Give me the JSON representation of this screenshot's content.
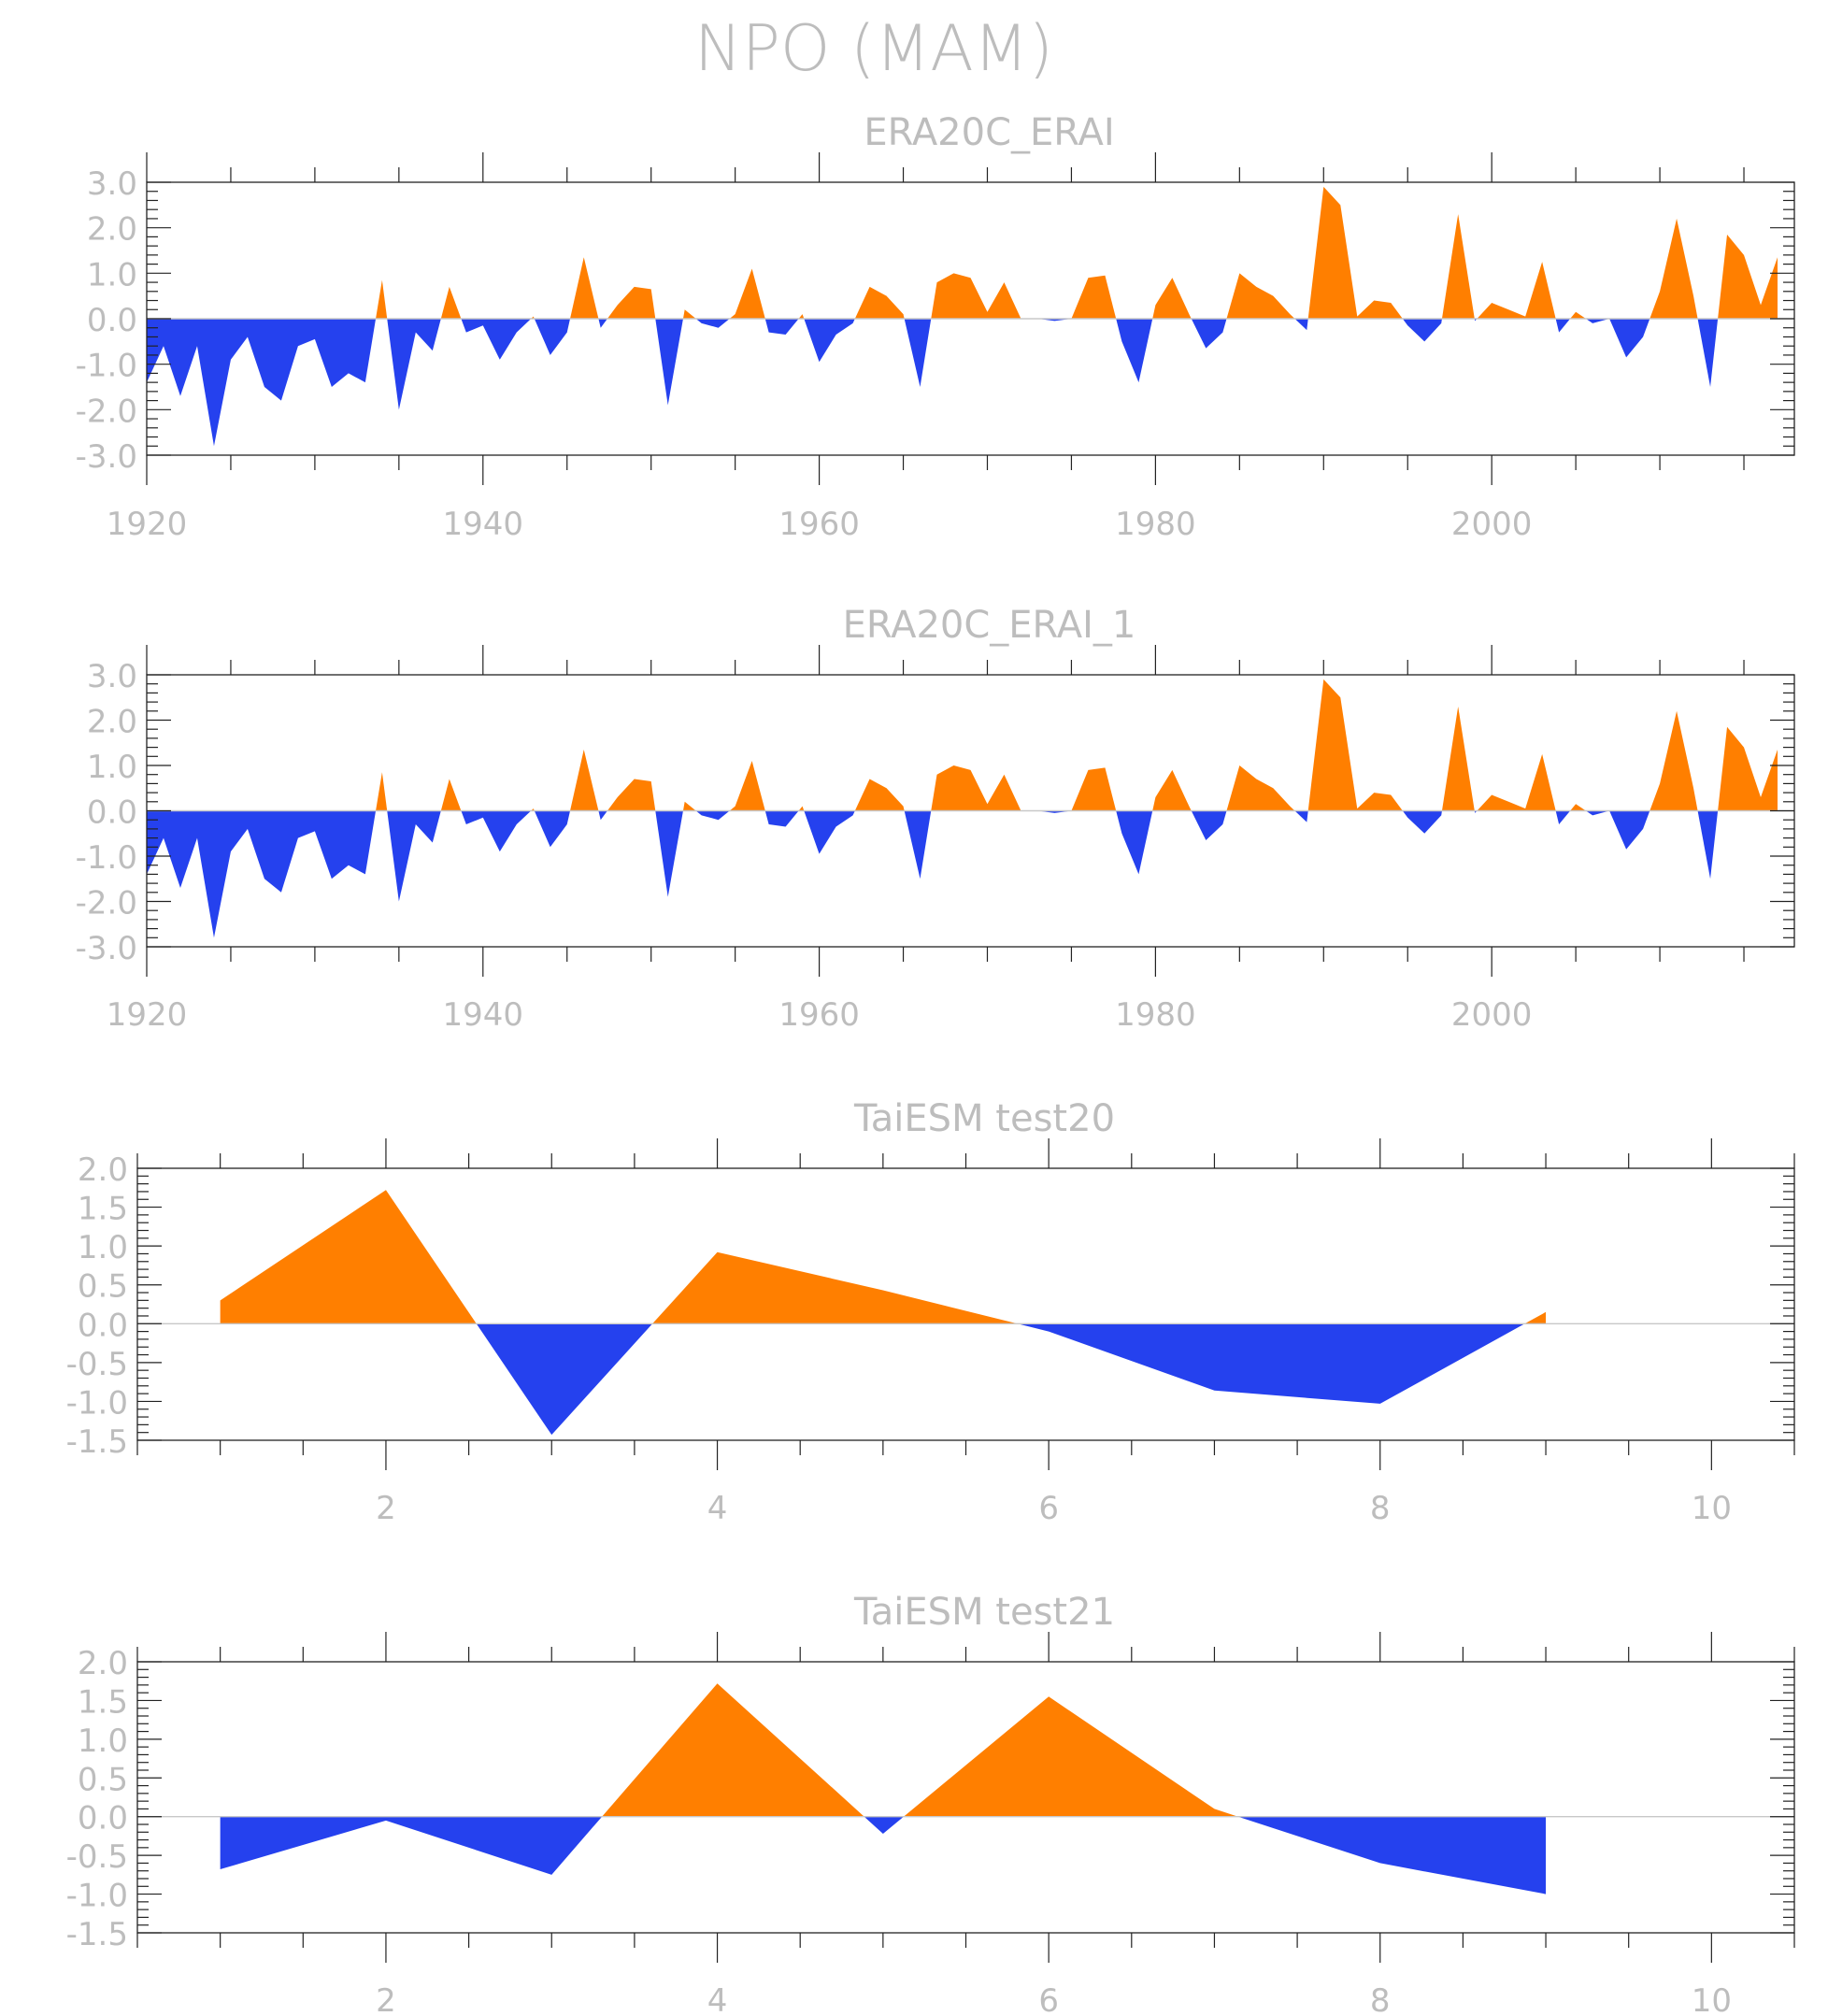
{
  "main_title": "NPO (MAM)",
  "colors": {
    "positive": "#ff7f00",
    "negative": "#2541ee",
    "text": "#bdbdbd",
    "frame": "#222222",
    "zero_line": "#c8c8c8"
  },
  "chart_data": [
    {
      "type": "area",
      "title": "ERA20C_ERAI",
      "xlabel": "",
      "ylabel": "",
      "xlim": [
        1920,
        2018
      ],
      "ylim": [
        -3,
        3
      ],
      "x_ticks": [
        1920,
        1940,
        1960,
        1980,
        2000
      ],
      "y_ticks": [
        "3.0",
        "2.0",
        "1.0",
        "0.0",
        "-1.0",
        "-2.0",
        "-3.0"
      ],
      "x_start": 1920,
      "values": [
        -1.4,
        -0.6,
        -1.7,
        -0.6,
        -2.8,
        -0.9,
        -0.4,
        -1.5,
        -1.8,
        -0.6,
        -0.45,
        -1.5,
        -1.2,
        -1.4,
        0.85,
        -2.0,
        -0.3,
        -0.7,
        0.7,
        -0.3,
        -0.15,
        -0.9,
        -0.3,
        0.05,
        -0.8,
        -0.3,
        1.35,
        -0.2,
        0.3,
        0.7,
        0.65,
        -1.9,
        0.2,
        -0.1,
        -0.2,
        0.1,
        1.1,
        -0.3,
        -0.35,
        0.1,
        -0.95,
        -0.35,
        -0.1,
        0.7,
        0.5,
        0.1,
        -1.5,
        0.8,
        1.0,
        0.9,
        0.15,
        0.8,
        0.0,
        0.0,
        -0.05,
        0.0,
        0.9,
        0.95,
        -0.5,
        -1.4,
        0.3,
        0.9,
        0.1,
        -0.65,
        -0.3,
        1.0,
        0.7,
        0.5,
        0.1,
        -0.25,
        2.9,
        2.5,
        0.05,
        0.4,
        0.35,
        -0.15,
        -0.5,
        -0.1,
        2.3,
        -0.05,
        0.35,
        0.2,
        0.05,
        1.25,
        -0.3,
        0.15,
        -0.1,
        0.0,
        -0.85,
        -0.4,
        0.6,
        2.2,
        0.5,
        -1.5,
        1.85,
        1.4,
        0.3,
        1.35
      ]
    },
    {
      "type": "area",
      "title": "ERA20C_ERAI_1",
      "xlabel": "",
      "ylabel": "",
      "xlim": [
        1920,
        2018
      ],
      "ylim": [
        -3,
        3
      ],
      "x_ticks": [
        1920,
        1940,
        1960,
        1980,
        2000
      ],
      "y_ticks": [
        "3.0",
        "2.0",
        "1.0",
        "0.0",
        "-1.0",
        "-2.0",
        "-3.0"
      ],
      "x_start": 1920,
      "values": [
        -1.4,
        -0.6,
        -1.7,
        -0.6,
        -2.8,
        -0.9,
        -0.4,
        -1.5,
        -1.8,
        -0.6,
        -0.45,
        -1.5,
        -1.2,
        -1.4,
        0.85,
        -2.0,
        -0.3,
        -0.7,
        0.7,
        -0.3,
        -0.15,
        -0.9,
        -0.3,
        0.05,
        -0.8,
        -0.3,
        1.35,
        -0.2,
        0.3,
        0.7,
        0.65,
        -1.9,
        0.2,
        -0.1,
        -0.2,
        0.1,
        1.1,
        -0.3,
        -0.35,
        0.1,
        -0.95,
        -0.35,
        -0.1,
        0.7,
        0.5,
        0.1,
        -1.5,
        0.8,
        1.0,
        0.9,
        0.15,
        0.8,
        0.0,
        0.0,
        -0.05,
        0.0,
        0.9,
        0.95,
        -0.5,
        -1.4,
        0.3,
        0.9,
        0.1,
        -0.65,
        -0.3,
        1.0,
        0.7,
        0.5,
        0.1,
        -0.25,
        2.9,
        2.5,
        0.05,
        0.4,
        0.35,
        -0.15,
        -0.5,
        -0.1,
        2.3,
        -0.05,
        0.35,
        0.2,
        0.05,
        1.25,
        -0.3,
        0.15,
        -0.1,
        0.0,
        -0.85,
        -0.4,
        0.6,
        2.2,
        0.5,
        -1.5,
        1.85,
        1.4,
        0.3,
        1.35
      ]
    },
    {
      "type": "area",
      "title": "TaiESM test20",
      "xlabel": "",
      "ylabel": "",
      "xlim": [
        0.5,
        10.5
      ],
      "ylim": [
        -1.5,
        2.0
      ],
      "x_ticks": [
        2,
        4,
        6,
        8,
        10
      ],
      "y_ticks": [
        "2.0",
        "1.5",
        "1.0",
        "0.5",
        "0.0",
        "-0.5",
        "-1.0",
        "-1.5"
      ],
      "x": [
        1,
        2,
        3,
        4,
        5,
        6,
        7,
        8,
        9
      ],
      "values": [
        0.3,
        1.72,
        -1.43,
        0.92,
        0.43,
        -0.1,
        -0.86,
        -1.03,
        0.15
      ]
    },
    {
      "type": "area",
      "title": "TaiESM test21",
      "xlabel": "",
      "ylabel": "",
      "xlim": [
        0.5,
        10.5
      ],
      "ylim": [
        -1.5,
        2.0
      ],
      "x_ticks": [
        2,
        4,
        6,
        8,
        10
      ],
      "y_ticks": [
        "2.0",
        "1.5",
        "1.0",
        "0.5",
        "0.0",
        "-0.5",
        "-1.0",
        "-1.5"
      ],
      "x": [
        1,
        2,
        3,
        4,
        5,
        6,
        7,
        8,
        9
      ],
      "values": [
        -0.68,
        -0.05,
        -0.75,
        1.72,
        -0.22,
        1.55,
        0.1,
        -0.6,
        -1.0
      ]
    }
  ]
}
